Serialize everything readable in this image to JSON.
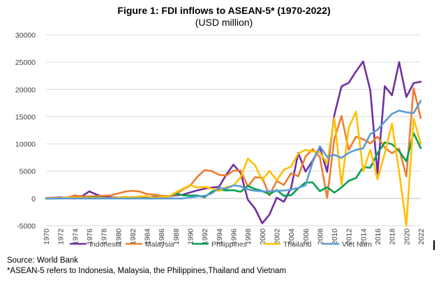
{
  "chart_data": {
    "type": "line",
    "title": "Figure 1: FDI inflows to ASEAN-5* (1970-2022)",
    "subtitle": "(USD million)",
    "xlabel": "",
    "ylabel": "",
    "ylim": [
      -5000,
      30000
    ],
    "y_ticks": [
      -5000,
      0,
      5000,
      10000,
      15000,
      20000,
      25000,
      30000
    ],
    "y_tick_labels": [
      "-5000",
      "0",
      "5000",
      "10000",
      "15000",
      "20000",
      "25000",
      "30000"
    ],
    "x": [
      1970,
      1971,
      1972,
      1973,
      1974,
      1975,
      1976,
      1977,
      1978,
      1979,
      1980,
      1981,
      1982,
      1983,
      1984,
      1985,
      1986,
      1987,
      1988,
      1989,
      1990,
      1991,
      1992,
      1993,
      1994,
      1995,
      1996,
      1997,
      1998,
      1999,
      2000,
      2001,
      2002,
      2003,
      2004,
      2005,
      2006,
      2007,
      2008,
      2009,
      2010,
      2011,
      2012,
      2013,
      2014,
      2015,
      2016,
      2017,
      2018,
      2019,
      2020,
      2021,
      2022
    ],
    "x_tick_labels": [
      "1970",
      "1972",
      "1974",
      "1976",
      "1978",
      "1980",
      "1982",
      "1984",
      "1986",
      "1988",
      "1990",
      "1992",
      "1994",
      "1996",
      "1998",
      "2000",
      "2002",
      "2004",
      "2006",
      "2008",
      "2010",
      "2012",
      "2014",
      "2016",
      "2018",
      "2020",
      "2022"
    ],
    "legend_position": "bottom",
    "grid": true,
    "series": [
      {
        "name": "Indonesia",
        "color": "#7030a0",
        "values": [
          80,
          140,
          200,
          50,
          500,
          400,
          1300,
          700,
          300,
          200,
          180,
          130,
          230,
          290,
          220,
          310,
          260,
          390,
          580,
          680,
          1090,
          1480,
          1780,
          2000,
          2110,
          4350,
          6190,
          4680,
          -240,
          -1870,
          -4550,
          -2980,
          150,
          -600,
          1900,
          8340,
          4910,
          6930,
          9320,
          4880,
          15290,
          20560,
          21200,
          23280,
          25120,
          19780,
          4540,
          20580,
          18910,
          24990,
          18590,
          21130,
          21400
        ]
      },
      {
        "name": "Malaysia",
        "color": "#ed7d31",
        "values": [
          90,
          100,
          110,
          170,
          570,
          350,
          380,
          410,
          500,
          570,
          930,
          1260,
          1400,
          1260,
          800,
          700,
          490,
          420,
          720,
          1670,
          2330,
          3990,
          5180,
          5010,
          4340,
          4180,
          5080,
          5140,
          2160,
          3890,
          3790,
          550,
          3200,
          2470,
          4620,
          4070,
          7690,
          9070,
          7570,
          110,
          10890,
          15120,
          8900,
          11300,
          10880,
          10080,
          11340,
          9300,
          8300,
          9100,
          4060,
          20200,
          14720
        ]
      },
      {
        "name": "Philippines",
        "color": "#00a050",
        "values": [
          -30,
          0,
          20,
          50,
          10,
          100,
          130,
          200,
          100,
          10,
          110,
          170,
          20,
          100,
          10,
          10,
          130,
          300,
          940,
          560,
          530,
          540,
          230,
          1240,
          1590,
          1480,
          1520,
          1220,
          2290,
          1730,
          1350,
          760,
          1540,
          480,
          590,
          1850,
          2920,
          2920,
          1340,
          2070,
          1070,
          2010,
          3220,
          3740,
          5740,
          5640,
          8280,
          10260,
          9950,
          8670,
          6820,
          11980,
          9200
        ]
      },
      {
        "name": "Thailand",
        "color": "#ffc000",
        "values": [
          40,
          40,
          70,
          80,
          190,
          90,
          80,
          110,
          50,
          50,
          190,
          290,
          190,
          350,
          400,
          160,
          260,
          350,
          1100,
          1780,
          2440,
          2010,
          2110,
          1800,
          1370,
          2070,
          2340,
          3880,
          7320,
          6100,
          3350,
          5060,
          3340,
          5230,
          5860,
          8220,
          8920,
          8630,
          8460,
          6410,
          14750,
          2470,
          12900,
          15940,
          4980,
          8930,
          3490,
          8290,
          13750,
          4820,
          -4970,
          14640,
          10030
        ]
      },
      {
        "name": "Viet Nam",
        "color": "#5b9bd5",
        "values": [
          0,
          0,
          0,
          0,
          0,
          0,
          0,
          0,
          0,
          0,
          0,
          0,
          0,
          0,
          0,
          0,
          0,
          0,
          0,
          0,
          180,
          380,
          470,
          930,
          1940,
          1780,
          2400,
          2220,
          1670,
          1410,
          1300,
          1300,
          1400,
          1450,
          1610,
          1950,
          2400,
          6700,
          9580,
          7600,
          8000,
          7430,
          8370,
          8900,
          9200,
          11800,
          12600,
          14100,
          15500,
          16120,
          15800,
          15660,
          17900
        ]
      }
    ]
  },
  "footer": {
    "source": "Source: World Bank",
    "note": "*ASEAN-5 refers to Indonesia, Malaysia, the Philippines,Thailand and Vietnam"
  }
}
